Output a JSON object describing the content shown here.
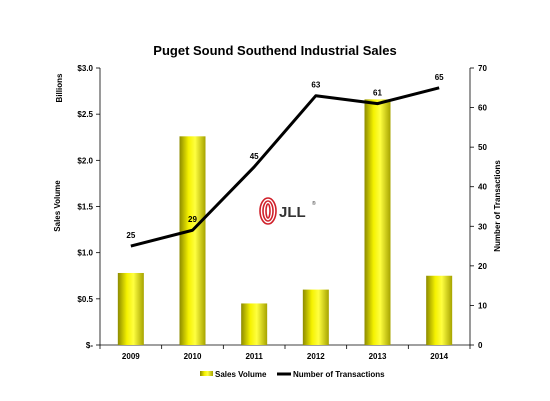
{
  "chart_data": {
    "type": "bar",
    "title": "Puget Sound Southend Industrial Sales",
    "categories": [
      "2009",
      "2010",
      "2011",
      "2012",
      "2013",
      "2014"
    ],
    "series": [
      {
        "name": "Sales Volume",
        "type": "bar",
        "axis": "left",
        "color": "#F5F200",
        "values": [
          0.78,
          2.26,
          0.45,
          0.6,
          2.66,
          0.75
        ]
      },
      {
        "name": "Number of Transactions",
        "type": "line",
        "axis": "right",
        "color": "#000000",
        "values": [
          25,
          29,
          45,
          63,
          61,
          65
        ]
      }
    ],
    "y_left": {
      "label": "Sales Volume",
      "unit_label": "Billions",
      "range": [
        0,
        3.0
      ],
      "ticks": [
        "$-",
        "$0.5",
        "$1.0",
        "$1.5",
        "$2.0",
        "$2.5",
        "$3.0"
      ]
    },
    "y_right": {
      "label": "Number of Transactions",
      "range": [
        0,
        70
      ],
      "ticks": [
        "0",
        "10",
        "20",
        "30",
        "40",
        "50",
        "60",
        "70"
      ]
    },
    "data_labels": [
      "25",
      "29",
      "45",
      "63",
      "61",
      "65"
    ],
    "legend_position": "bottom",
    "grid": false
  },
  "logo": {
    "text": "JLL",
    "mark": "®",
    "color": "#D0202A"
  }
}
